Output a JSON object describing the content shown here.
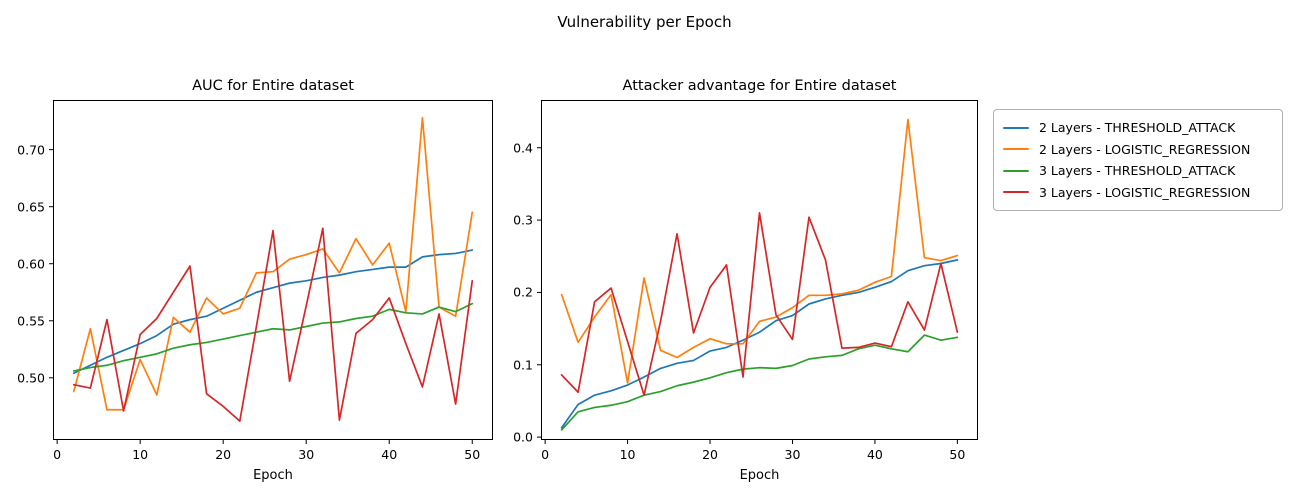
{
  "suptitle": "Vulnerability per Epoch",
  "palette": {
    "blue": "#1f77b4",
    "orange": "#ff7f0e",
    "green": "#2ca02c",
    "red": "#d62728",
    "axis": "#000000",
    "legend_border": "#b0b0b0"
  },
  "legend": {
    "position": "outside-right",
    "entries": [
      {
        "label": "2 Layers - THRESHOLD_ATTACK",
        "color": "#1f77b4"
      },
      {
        "label": "2 Layers - LOGISTIC_REGRESSION",
        "color": "#ff7f0e"
      },
      {
        "label": "3 Layers - THRESHOLD_ATTACK",
        "color": "#2ca02c"
      },
      {
        "label": "3 Layers - LOGISTIC_REGRESSION",
        "color": "#d62728"
      }
    ]
  },
  "chart_data": [
    {
      "type": "line",
      "title": "AUC for Entire dataset",
      "xlabel": "Epoch",
      "ylabel": "",
      "grid": false,
      "x": [
        2,
        4,
        6,
        8,
        10,
        12,
        14,
        16,
        18,
        20,
        22,
        24,
        26,
        28,
        30,
        32,
        34,
        36,
        38,
        40,
        42,
        44,
        46,
        48,
        50
      ],
      "xlim": [
        -0.5,
        52.5
      ],
      "ylim": [
        0.4455,
        0.7435
      ],
      "xticks": [
        0,
        10,
        20,
        30,
        40,
        50
      ],
      "xtick_labels": [
        "0",
        "10",
        "20",
        "30",
        "40",
        "50"
      ],
      "yticks": [
        0.5,
        0.55,
        0.6,
        0.65,
        0.7
      ],
      "ytick_labels": [
        "0.50",
        "0.55",
        "0.60",
        "0.65",
        "0.70"
      ],
      "series": [
        {
          "name": "2 Layers - THRESHOLD_ATTACK",
          "color": "#1f77b4",
          "values": [
            0.504,
            0.511,
            0.518,
            0.524,
            0.53,
            0.537,
            0.547,
            0.551,
            0.554,
            0.561,
            0.568,
            0.575,
            0.579,
            0.583,
            0.585,
            0.588,
            0.59,
            0.593,
            0.595,
            0.597,
            0.597,
            0.606,
            0.608,
            0.609,
            0.612
          ]
        },
        {
          "name": "2 Layers - LOGISTIC_REGRESSION",
          "color": "#ff7f0e",
          "values": [
            0.488,
            0.543,
            0.472,
            0.472,
            0.516,
            0.485,
            0.553,
            0.54,
            0.57,
            0.556,
            0.561,
            0.592,
            0.593,
            0.604,
            0.608,
            0.613,
            0.592,
            0.622,
            0.599,
            0.618,
            0.558,
            0.728,
            0.562,
            0.554,
            0.645
          ]
        },
        {
          "name": "3 Layers - THRESHOLD_ATTACK",
          "color": "#2ca02c",
          "values": [
            0.506,
            0.509,
            0.511,
            0.515,
            0.518,
            0.521,
            0.526,
            0.529,
            0.531,
            0.534,
            0.537,
            0.54,
            0.543,
            0.542,
            0.545,
            0.548,
            0.549,
            0.552,
            0.554,
            0.56,
            0.557,
            0.556,
            0.562,
            0.558,
            0.565
          ]
        },
        {
          "name": "3 Layers - LOGISTIC_REGRESSION",
          "color": "#d62728",
          "values": [
            0.494,
            0.491,
            0.551,
            0.471,
            0.538,
            0.552,
            0.575,
            0.598,
            0.486,
            0.475,
            0.462,
            0.545,
            0.629,
            0.497,
            0.563,
            0.631,
            0.463,
            0.539,
            0.551,
            0.57,
            0.53,
            0.492,
            0.556,
            0.477,
            0.585
          ]
        }
      ]
    },
    {
      "type": "line",
      "title": "Attacker advantage for Entire dataset",
      "xlabel": "Epoch",
      "ylabel": "",
      "grid": false,
      "x": [
        2,
        4,
        6,
        8,
        10,
        12,
        14,
        16,
        18,
        20,
        22,
        24,
        26,
        28,
        30,
        32,
        34,
        36,
        38,
        40,
        42,
        44,
        46,
        48,
        50
      ],
      "xlim": [
        -0.5,
        52.5
      ],
      "ylim": [
        -0.004,
        0.466
      ],
      "xticks": [
        0,
        10,
        20,
        30,
        40,
        50
      ],
      "xtick_labels": [
        "0",
        "10",
        "20",
        "30",
        "40",
        "50"
      ],
      "yticks": [
        0.0,
        0.1,
        0.2,
        0.3,
        0.4
      ],
      "ytick_labels": [
        "0.0",
        "0.1",
        "0.2",
        "0.3",
        "0.4"
      ],
      "series": [
        {
          "name": "2 Layers - THRESHOLD_ATTACK",
          "color": "#1f77b4",
          "values": [
            0.013,
            0.045,
            0.058,
            0.064,
            0.072,
            0.083,
            0.095,
            0.102,
            0.106,
            0.119,
            0.124,
            0.134,
            0.145,
            0.161,
            0.168,
            0.184,
            0.191,
            0.196,
            0.2,
            0.207,
            0.215,
            0.23,
            0.237,
            0.24,
            0.245
          ]
        },
        {
          "name": "2 Layers - LOGISTIC_REGRESSION",
          "color": "#ff7f0e",
          "values": [
            0.197,
            0.131,
            0.166,
            0.197,
            0.075,
            0.22,
            0.12,
            0.11,
            0.124,
            0.136,
            0.129,
            0.129,
            0.16,
            0.166,
            0.179,
            0.196,
            0.196,
            0.198,
            0.203,
            0.214,
            0.222,
            0.439,
            0.248,
            0.244,
            0.251
          ]
        },
        {
          "name": "3 Layers - THRESHOLD_ATTACK",
          "color": "#2ca02c",
          "values": [
            0.01,
            0.035,
            0.041,
            0.044,
            0.049,
            0.058,
            0.063,
            0.071,
            0.076,
            0.082,
            0.089,
            0.094,
            0.096,
            0.095,
            0.099,
            0.108,
            0.111,
            0.113,
            0.122,
            0.127,
            0.122,
            0.118,
            0.141,
            0.134,
            0.138
          ]
        },
        {
          "name": "3 Layers - LOGISTIC_REGRESSION",
          "color": "#d62728",
          "values": [
            0.086,
            0.062,
            0.187,
            0.206,
            0.132,
            0.058,
            0.16,
            0.281,
            0.144,
            0.207,
            0.238,
            0.083,
            0.31,
            0.169,
            0.135,
            0.304,
            0.245,
            0.123,
            0.124,
            0.13,
            0.125,
            0.187,
            0.148,
            0.24,
            0.145
          ]
        }
      ]
    }
  ]
}
